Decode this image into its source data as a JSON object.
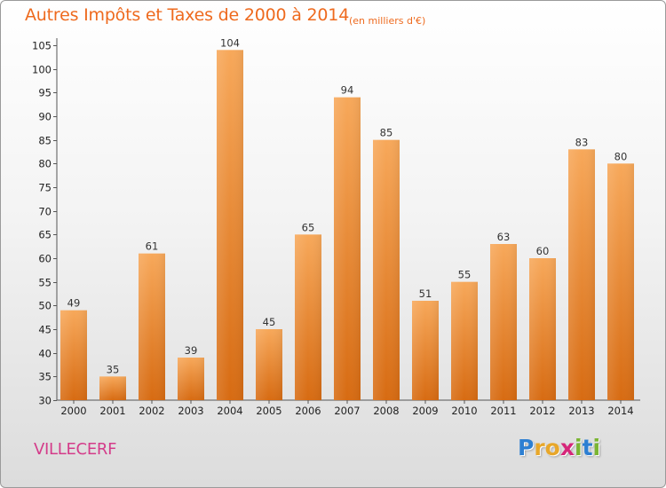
{
  "chart_data": {
    "type": "bar",
    "title": "Autres Impôts et Taxes de 2000 à 2014",
    "subtitle": "(en milliers d'€)",
    "categories": [
      "2000",
      "2001",
      "2002",
      "2003",
      "2004",
      "2005",
      "2006",
      "2007",
      "2008",
      "2009",
      "2010",
      "2011",
      "2012",
      "2013",
      "2014"
    ],
    "values": [
      49,
      35,
      61,
      39,
      104,
      45,
      65,
      94,
      85,
      51,
      55,
      63,
      60,
      83,
      80
    ],
    "ylim": [
      30,
      105
    ],
    "yticks": [
      30,
      35,
      40,
      45,
      50,
      55,
      60,
      65,
      70,
      75,
      80,
      85,
      90,
      95,
      100,
      105
    ],
    "xlabel": "",
    "ylabel": "",
    "grid": false,
    "bar_color": "#f08a2c"
  },
  "footer": {
    "commune": "VILLECERF",
    "logo_letters": [
      {
        "ch": "P",
        "color": "#2d7fd2"
      },
      {
        "ch": "r",
        "color": "#e8a72a"
      },
      {
        "ch": "o",
        "color": "#e8a72a"
      },
      {
        "ch": "x",
        "color": "#d6267a"
      },
      {
        "ch": "i",
        "color": "#7ab532"
      },
      {
        "ch": "t",
        "color": "#2d7fd2"
      },
      {
        "ch": "i",
        "color": "#7ab532"
      }
    ]
  },
  "colors": {
    "title": "#ee6a1e",
    "commune": "#d43c8a",
    "bar_light": "#f7a85a",
    "bar_dark": "#d76b12"
  }
}
